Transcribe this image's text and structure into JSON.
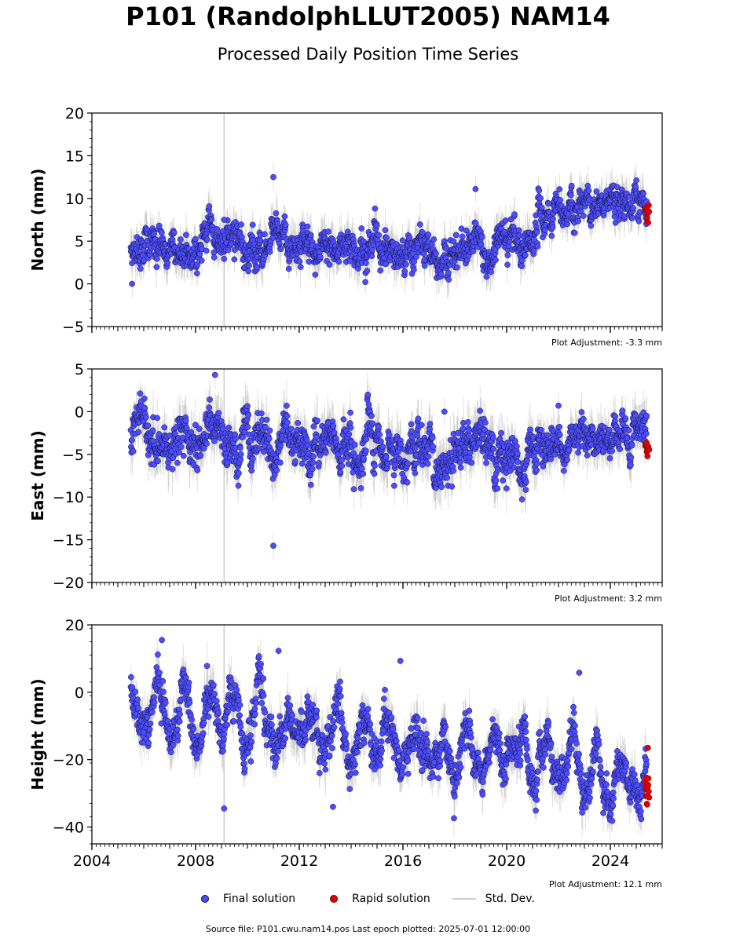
{
  "title": "P101 (RandolphLLUT2005) NAM14",
  "subtitle": "Processed Daily Position Time Series",
  "source": "Source file: P101.cwu.nam14.pos  Last epoch plotted: 2025-07-01 12:00:00",
  "legend": {
    "final": "Final solution",
    "rapid": "Rapid solution",
    "std": "Std. Dev."
  },
  "colors": {
    "final_fill": "#4d4dff",
    "rapid_fill": "#e00000",
    "std_dev": "#bbbbbb",
    "equipment_line": "#cccccc"
  },
  "chart_data": [
    {
      "type": "scatter",
      "ylabel": "North (mm)",
      "adjustment": "Plot Adjustment: -3.3 mm",
      "xlim": [
        2004,
        2026
      ],
      "ylim": [
        -5,
        20
      ],
      "yticks": [
        -5,
        0,
        5,
        10,
        15,
        20
      ],
      "xticks": [
        2004,
        2008,
        2012,
        2016,
        2020,
        2024
      ],
      "show_xtick_labels": false,
      "vertical_marker_year": 2009.1,
      "series": [
        {
          "name": "Final solution",
          "kind": "daily",
          "segments": [
            {
              "start": 2005.5,
              "end": 2021.2,
              "mean_start": 3.8,
              "mean_end": 4.4,
              "noise_sd": 1.2
            },
            {
              "start": 2021.2,
              "end": 2025.4,
              "mean_start": 9.2,
              "mean_end": 9.3,
              "noise_sd": 1.1
            }
          ],
          "outliers": [
            [
              2005.55,
              0.0
            ],
            [
              2011.0,
              12.5
            ],
            [
              2018.8,
              11.1
            ],
            [
              2009.1,
              7.5
            ]
          ]
        },
        {
          "name": "Rapid solution",
          "kind": "daily",
          "segments": [
            {
              "start": 2025.35,
              "end": 2025.5,
              "mean_start": 8.8,
              "mean_end": 8.8,
              "noise_sd": 0.6
            }
          ]
        }
      ]
    },
    {
      "type": "scatter",
      "ylabel": "East (mm)",
      "adjustment": "Plot Adjustment: 3.2 mm",
      "xlim": [
        2004,
        2026
      ],
      "ylim": [
        -20,
        5
      ],
      "yticks": [
        -20,
        -15,
        -10,
        -5,
        0,
        5
      ],
      "xticks": [
        2004,
        2008,
        2012,
        2016,
        2020,
        2024
      ],
      "show_xtick_labels": false,
      "vertical_marker_year": 2009.1,
      "series": [
        {
          "name": "Final solution",
          "kind": "daily",
          "segments": [
            {
              "start": 2005.5,
              "end": 2021.2,
              "mean_start": -2.5,
              "mean_end": -5.5,
              "noise_sd": 1.5
            },
            {
              "start": 2021.2,
              "end": 2025.4,
              "mean_start": -3.5,
              "mean_end": -3.8,
              "noise_sd": 1.3
            }
          ],
          "outliers": [
            [
              2008.75,
              4.3
            ],
            [
              2011.0,
              -15.7
            ],
            [
              2005.9,
              1.2
            ],
            [
              2017.6,
              0.0
            ],
            [
              2022.0,
              0.7
            ]
          ]
        },
        {
          "name": "Rapid solution",
          "kind": "daily",
          "segments": [
            {
              "start": 2025.35,
              "end": 2025.5,
              "mean_start": -4.2,
              "mean_end": -4.2,
              "noise_sd": 0.6
            }
          ]
        }
      ]
    },
    {
      "type": "scatter",
      "ylabel": "Height (mm)",
      "adjustment": "Plot Adjustment: 12.1 mm",
      "xlim": [
        2004,
        2026
      ],
      "ylim": [
        -45,
        20
      ],
      "yticks": [
        -40,
        -20,
        0,
        20
      ],
      "xticks": [
        2004,
        2008,
        2012,
        2016,
        2020,
        2024
      ],
      "show_xtick_labels": true,
      "vertical_marker_year": 2009.1,
      "series": [
        {
          "name": "Final solution",
          "kind": "daily",
          "seasonal_amplitude": 6,
          "segments": [
            {
              "start": 2005.5,
              "end": 2025.4,
              "mean_start": -4,
              "mean_end": -26,
              "noise_sd": 3.5
            }
          ],
          "outliers": [
            [
              2006.7,
              15.5
            ],
            [
              2009.1,
              -34.5
            ],
            [
              2011.2,
              12.3
            ],
            [
              2022.8,
              5.8
            ],
            [
              2015.9,
              9.3
            ],
            [
              2013.3,
              -34.0
            ]
          ]
        },
        {
          "name": "Rapid solution",
          "kind": "daily",
          "segments": [
            {
              "start": 2025.35,
              "end": 2025.5,
              "mean_start": -25,
              "mean_end": -25,
              "noise_sd": 3.0
            }
          ],
          "outliers": [
            [
              2025.45,
              -16.5
            ]
          ]
        }
      ]
    }
  ]
}
